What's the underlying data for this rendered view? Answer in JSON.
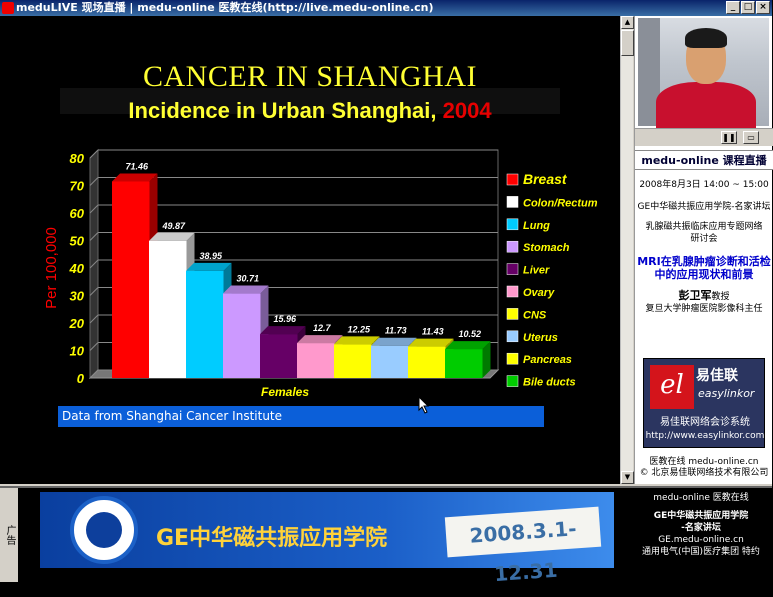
{
  "window": {
    "title": "meduLIVE 现场直播 | medu-online 医教在线(http://live.medu-online.cn)",
    "minimize": "_",
    "maximize": "□",
    "close": "×"
  },
  "slide": {
    "title": "CANCER IN SHANGHAI",
    "subtitle_main": "Incidence in Urban Shanghai,",
    "subtitle_year": "2004",
    "footer": "Data from Shanghai Cancer Institute"
  },
  "chart_data": {
    "type": "bar",
    "xlabel": "Females",
    "ylabel": "Per 100,000",
    "ylim": [
      0,
      80
    ],
    "yticks": [
      0,
      10,
      20,
      30,
      40,
      50,
      60,
      70,
      80
    ],
    "categories": [
      "Breast",
      "Colon/Rectum",
      "Lung",
      "Stomach",
      "Liver",
      "Ovary",
      "CNS",
      "Uterus",
      "Pancreas",
      "Bile ducts"
    ],
    "values": [
      71.46,
      49.87,
      38.95,
      30.71,
      15.96,
      12.7,
      12.25,
      11.73,
      11.43,
      10.52
    ],
    "value_labels": [
      "71.46",
      "49.87",
      "38.95",
      "30.71",
      "15.96",
      "12.7",
      "12.25",
      "11.73",
      "11.43",
      "10.52"
    ],
    "colors": [
      "#ff0000",
      "#ffffff",
      "#00ccff",
      "#cc99ff",
      "#660066",
      "#ff99cc",
      "#ffff00",
      "#99ccff",
      "#ffff00",
      "#00cc00"
    ],
    "legend_position": "right",
    "grid": true
  },
  "sidebar": {
    "live_header": "medu-online 课程直播",
    "datetime": "2008年8月3日 14:00 ~ 15:00",
    "forum": "GE中华磁共振应用学院-名家讲坛",
    "seminar": "乳腺磁共振临床应用专题网络研讨会",
    "topic": "MRI在乳腺肿瘤诊断和活检中的应用现状和前景",
    "speaker": "彭卫军",
    "speaker_title": "教授",
    "hospital": "复旦大学肿瘤医院影像科主任",
    "logo_cn": "易佳联",
    "logo_en": "easylinkor",
    "logo_system": "易佳联网络会诊系统",
    "logo_url": "http://www.easylinkor.com",
    "credit1": "医教在线 medu-online.cn",
    "credit2": "© 北京易佳联网络技术有限公司",
    "pause": "❚❚",
    "fullscreen": "▭"
  },
  "bottom": {
    "ad_label": "广告",
    "banner_title": "GE中华磁共振应用学院",
    "banner_date": "2008.3.1-12.31",
    "right1": "medu-online 医教在线",
    "right2": "GE中华磁共振应用学院",
    "right3": "-名家讲坛",
    "right4": "GE.medu-online.cn",
    "right5": "通用电气(中国)医疗集团 特约"
  }
}
